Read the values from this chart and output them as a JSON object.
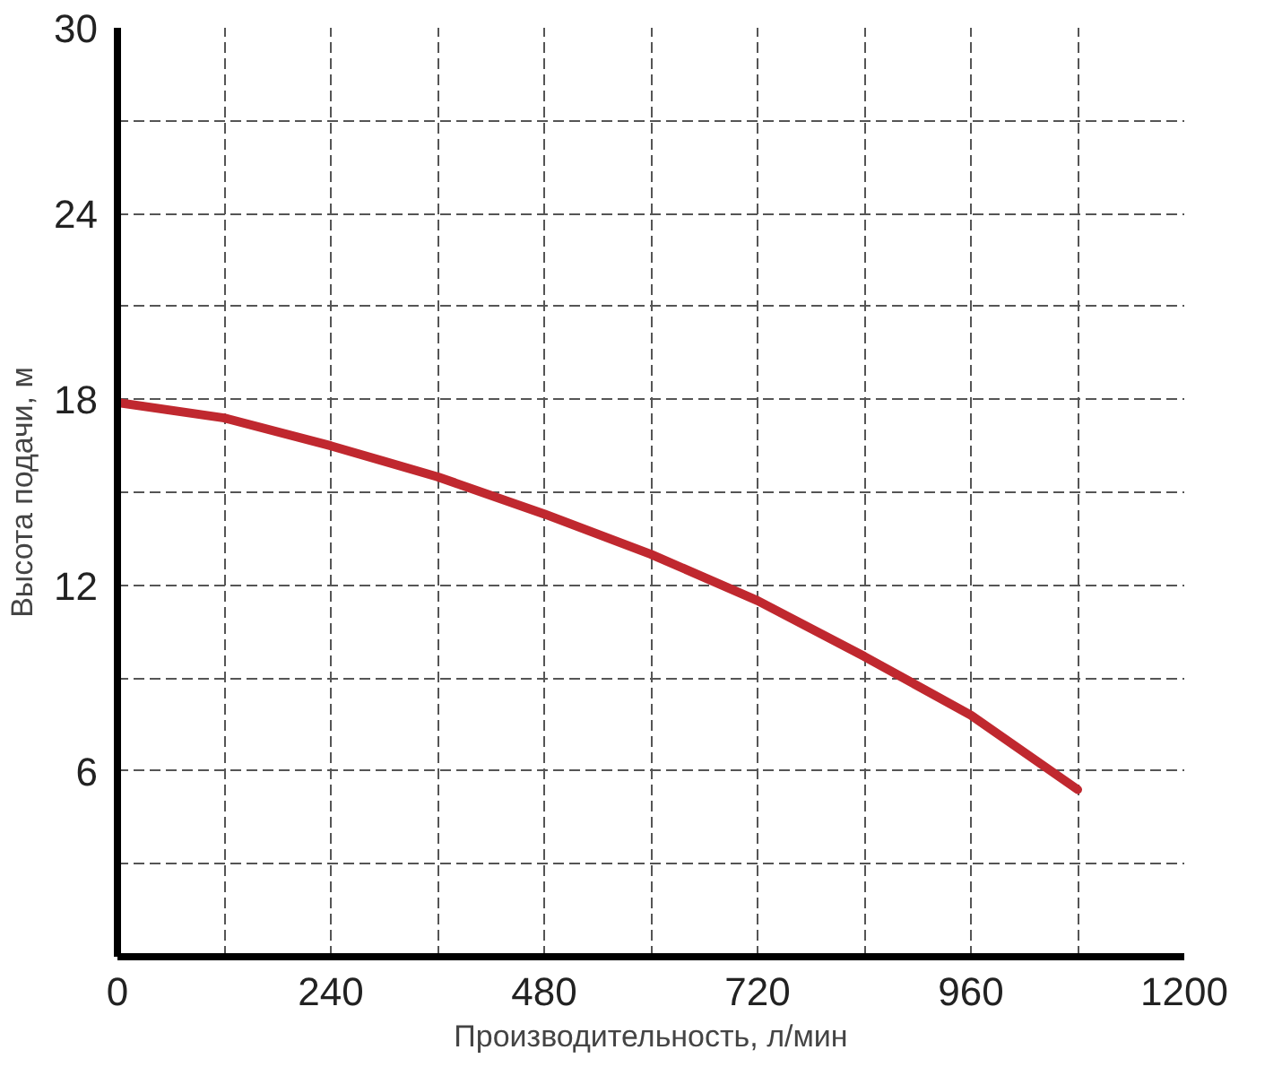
{
  "chart_data": {
    "type": "line",
    "xlabel": "Производительность, л/мин",
    "ylabel": "Высота подачи, м",
    "x": [
      0,
      120,
      240,
      360,
      480,
      600,
      720,
      840,
      960,
      1080
    ],
    "series": [
      {
        "color": "#c0282f",
        "values": [
          17.9,
          17.4,
          16.5,
          15.5,
          14.3,
          13.0,
          11.5,
          9.7,
          7.8,
          5.4
        ]
      }
    ],
    "xlim": [
      0,
      1200
    ],
    "xticks": [
      0,
      {
        "value": 120,
        "label": null
      },
      240,
      {
        "value": 360,
        "label": null
      },
      480,
      {
        "value": 600,
        "label": null
      },
      720,
      {
        "value": 840,
        "label": null
      },
      960,
      {
        "value": 1080,
        "label": null
      },
      1200
    ],
    "ylim": [
      0,
      30
    ],
    "yticks": [
      {
        "value": 3,
        "label": null
      },
      6,
      {
        "value": 9,
        "label": null
      },
      12,
      {
        "value": 15,
        "label": null
      },
      18,
      {
        "value": 21,
        "label": null
      },
      24,
      {
        "value": 27,
        "label": null
      },
      30
    ],
    "grid": true,
    "marker": "none",
    "line_style": "solid"
  }
}
